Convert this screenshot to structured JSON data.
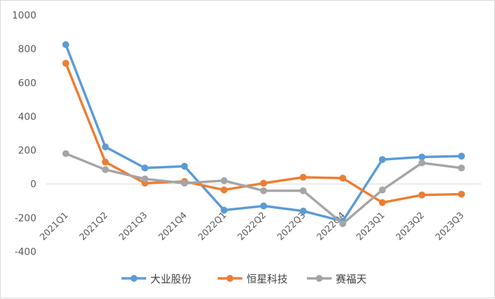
{
  "chart_data": {
    "type": "line",
    "categories": [
      "2021Q1",
      "2021Q2",
      "2021Q3",
      "2021Q4",
      "2022Q1",
      "2022Q2",
      "2022Q3",
      "2022Q4",
      "2023Q1",
      "2023Q2",
      "2023Q3"
    ],
    "series": [
      {
        "name": "大业股份",
        "color": "#5b9bd5",
        "values": [
          825,
          220,
          95,
          105,
          -155,
          -130,
          -160,
          -220,
          145,
          160,
          165
        ]
      },
      {
        "name": "恒星科技",
        "color": "#ed7d31",
        "values": [
          715,
          130,
          5,
          15,
          -35,
          5,
          40,
          35,
          -110,
          -65,
          -60
        ]
      },
      {
        "name": "赛福天",
        "color": "#a5a5a5",
        "values": [
          180,
          85,
          30,
          5,
          20,
          -40,
          -40,
          -235,
          -35,
          125,
          95
        ]
      }
    ],
    "y_ticks": [
      "1000",
      "800",
      "600",
      "400",
      "200",
      "0",
      "-200",
      "-400"
    ],
    "ylim": [
      -400,
      1000
    ],
    "grid": false,
    "legend_position": "bottom"
  }
}
